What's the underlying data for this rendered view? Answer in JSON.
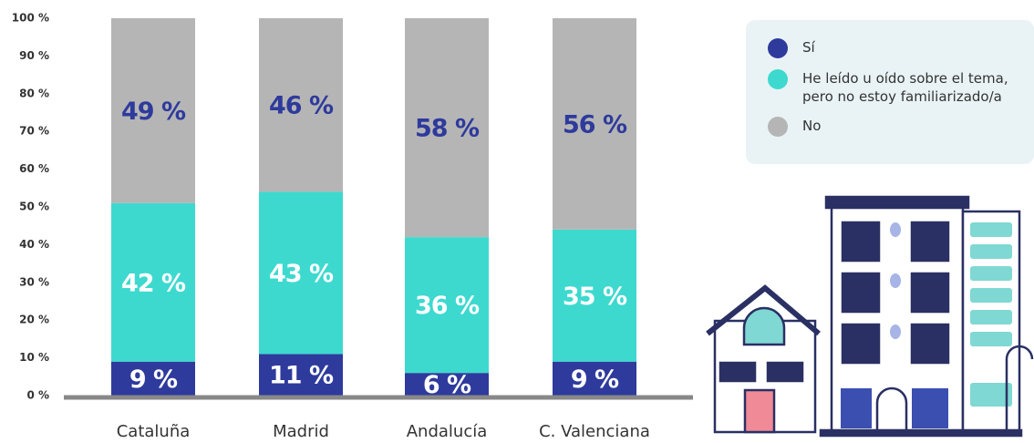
{
  "chart_data": {
    "type": "stacked_bar",
    "categories": [
      "Cataluña",
      "Madrid",
      "Andalucía",
      "C. Valenciana"
    ],
    "series": [
      {
        "name": "Sí",
        "color": "#2e3a9c",
        "label_color": "#ffffff",
        "values": [
          9,
          11,
          6,
          9
        ],
        "value_labels": [
          "9 %",
          "11 %",
          "6 %",
          "9 %"
        ]
      },
      {
        "name": "He leído u oído sobre el tema, pero no estoy familiarizado/a",
        "color": "#3dd9cf",
        "label_color": "#ffffff",
        "values": [
          42,
          43,
          36,
          35
        ],
        "value_labels": [
          "42 %",
          "43 %",
          "36 %",
          "35 %"
        ]
      },
      {
        "name": "No",
        "color": "#b5b5b5",
        "label_color": "#2e3a9c",
        "values": [
          49,
          46,
          58,
          56
        ],
        "value_labels": [
          "49 %",
          "46 %",
          "58 %",
          "56 %"
        ]
      }
    ],
    "ylim": [
      0,
      100
    ],
    "yticks": [
      {
        "value": 0,
        "label": "0 %"
      },
      {
        "value": 10,
        "label": "10 %"
      },
      {
        "value": 20,
        "label": "20 %"
      },
      {
        "value": 30,
        "label": "30 %"
      },
      {
        "value": 40,
        "label": "40 %"
      },
      {
        "value": 50,
        "label": "50 %"
      },
      {
        "value": 60,
        "label": "60 %"
      },
      {
        "value": 70,
        "label": "70 %"
      },
      {
        "value": 80,
        "label": "80 %"
      },
      {
        "value": 90,
        "label": "90 %"
      },
      {
        "value": 100,
        "label": "100 %"
      }
    ],
    "grid": false,
    "legend": "upper right"
  }
}
